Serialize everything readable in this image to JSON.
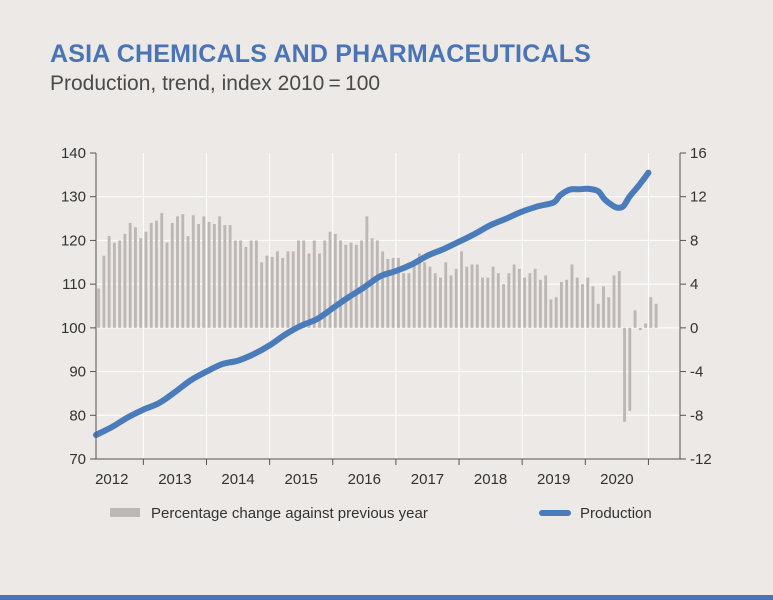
{
  "header": {
    "title": "ASIA CHEMICALS AND PHARMACEUTICALS",
    "subtitle": "Production, trend, index 2010 = 100"
  },
  "colors": {
    "title": "#4a74b6",
    "line": "#4a7bbb",
    "bar": "#bdb8b6",
    "grid": "#ffffff",
    "background": "#ece9e6",
    "axis": "#555555",
    "text": "#333333"
  },
  "chart_data": {
    "type": "bar+line",
    "title": "ASIA CHEMICALS AND PHARMACEUTICALS",
    "subtitle": "Production, trend, index 2010 = 100",
    "x_start": 2011.75,
    "x_end": 2021.0,
    "categories": [
      "2012",
      "2013",
      "2014",
      "2015",
      "2016",
      "2017",
      "2018",
      "2019",
      "2020"
    ],
    "left_axis": {
      "ylim": [
        70,
        140
      ],
      "ticks": [
        "140",
        "130",
        "120",
        "110",
        "100",
        "90",
        "80",
        "70"
      ]
    },
    "right_axis": {
      "ylim": [
        -12,
        16
      ],
      "ticks": [
        "16",
        "12",
        "8",
        "4",
        "0",
        "-4",
        "-8",
        "-12"
      ]
    },
    "legend": {
      "bars": "Percentage change against previous year",
      "line": "Production",
      "position": "bottom"
    },
    "bar_series": {
      "name": "Percentage change against previous year",
      "axis": "right",
      "start": 2011.75,
      "step": 0.0833,
      "values": [
        3.6,
        6.6,
        8.4,
        7.8,
        8.0,
        8.6,
        9.6,
        9.2,
        8.2,
        8.8,
        9.6,
        9.8,
        10.5,
        7.8,
        9.6,
        10.2,
        10.4,
        8.4,
        10.3,
        9.5,
        10.2,
        9.7,
        9.5,
        10.2,
        9.4,
        9.4,
        8.0,
        8.0,
        7.4,
        8.0,
        8.0,
        6.0,
        6.6,
        6.5,
        7.0,
        6.4,
        7.0,
        7.0,
        8.0,
        8.0,
        6.8,
        8.0,
        6.8,
        8.0,
        8.8,
        8.6,
        8.0,
        7.6,
        7.8,
        7.6,
        8.0,
        10.2,
        8.2,
        8.0,
        7.0,
        6.3,
        6.4,
        6.4,
        5.0,
        5.0,
        6.0,
        6.8,
        6.0,
        5.6,
        5.0,
        4.6,
        6.0,
        4.8,
        5.4,
        7.0,
        5.6,
        5.8,
        5.8,
        4.6,
        4.6,
        5.6,
        5.0,
        4.0,
        5.0,
        5.8,
        5.4,
        4.6,
        5.0,
        5.4,
        4.4,
        4.8,
        2.6,
        2.8,
        4.2,
        4.4,
        5.8,
        4.6,
        4.0,
        4.6,
        3.8,
        2.2,
        3.8,
        2.8,
        4.8,
        5.2,
        -8.6,
        -7.6,
        1.6,
        -0.2,
        0.4,
        2.8,
        2.2
      ]
    },
    "line_series": {
      "name": "Production",
      "axis": "left",
      "x": [
        2011.75,
        2012.0,
        2012.25,
        2012.5,
        2012.75,
        2013.0,
        2013.25,
        2013.5,
        2013.75,
        2014.0,
        2014.25,
        2014.5,
        2014.75,
        2015.0,
        2015.25,
        2015.5,
        2015.75,
        2016.0,
        2016.25,
        2016.5,
        2016.75,
        2017.0,
        2017.25,
        2017.5,
        2017.75,
        2018.0,
        2018.25,
        2018.5,
        2018.75,
        2019.0,
        2019.1,
        2019.25,
        2019.4,
        2019.55,
        2019.7,
        2019.8,
        2019.9,
        2020.0,
        2020.1,
        2020.2,
        2020.35,
        2020.5
      ],
      "values": [
        75.5,
        77.3,
        79.5,
        81.3,
        82.8,
        85.3,
        88.0,
        90.0,
        91.7,
        92.5,
        94.0,
        96.0,
        98.5,
        100.5,
        102.0,
        104.5,
        107.0,
        109.3,
        111.8,
        113.0,
        114.5,
        116.5,
        118.0,
        119.7,
        121.5,
        123.5,
        125.0,
        126.6,
        127.8,
        128.7,
        130.3,
        131.6,
        131.7,
        131.8,
        131.3,
        129.5,
        128.3,
        127.5,
        127.8,
        130.0,
        132.6,
        135.5
      ]
    }
  }
}
